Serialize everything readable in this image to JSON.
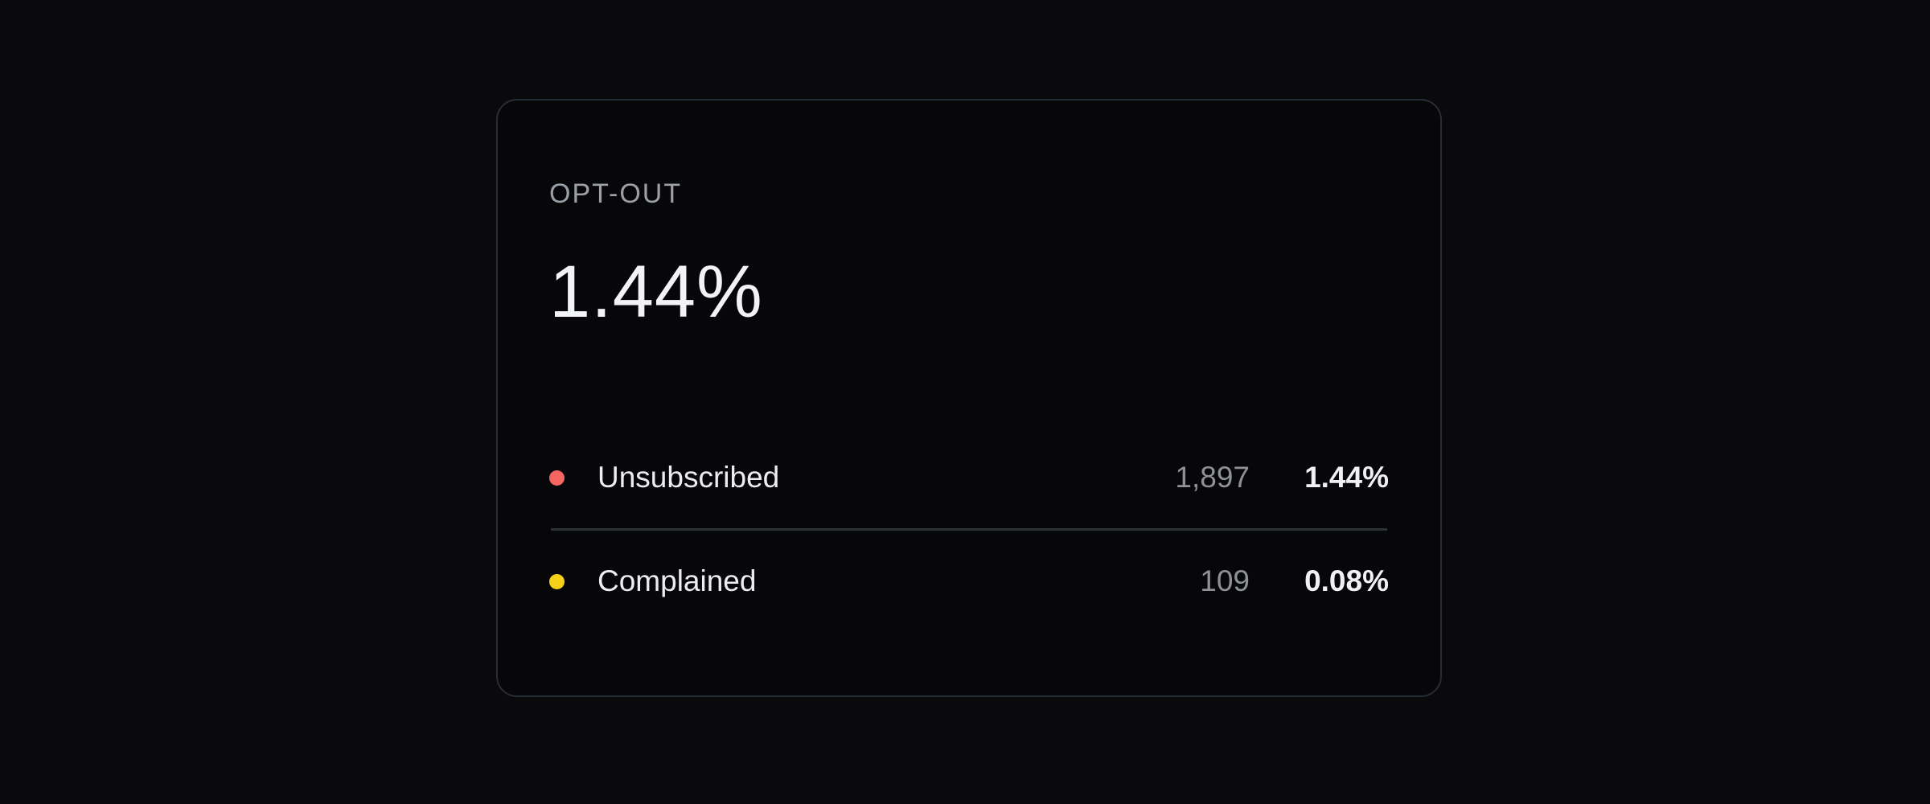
{
  "page": {
    "background_color": "#0a0a0d"
  },
  "card": {
    "title": "OPT-OUT",
    "value": "1.44%",
    "border_color": "#272d34",
    "divider_color": "#2c3137",
    "rows": [
      {
        "label": "Unsubscribed",
        "count": "1,897",
        "percent": "1.44%",
        "dot_color": "#f56562"
      },
      {
        "label": "Complained",
        "count": "109",
        "percent": "0.08%",
        "dot_color": "#f7d118"
      }
    ]
  }
}
